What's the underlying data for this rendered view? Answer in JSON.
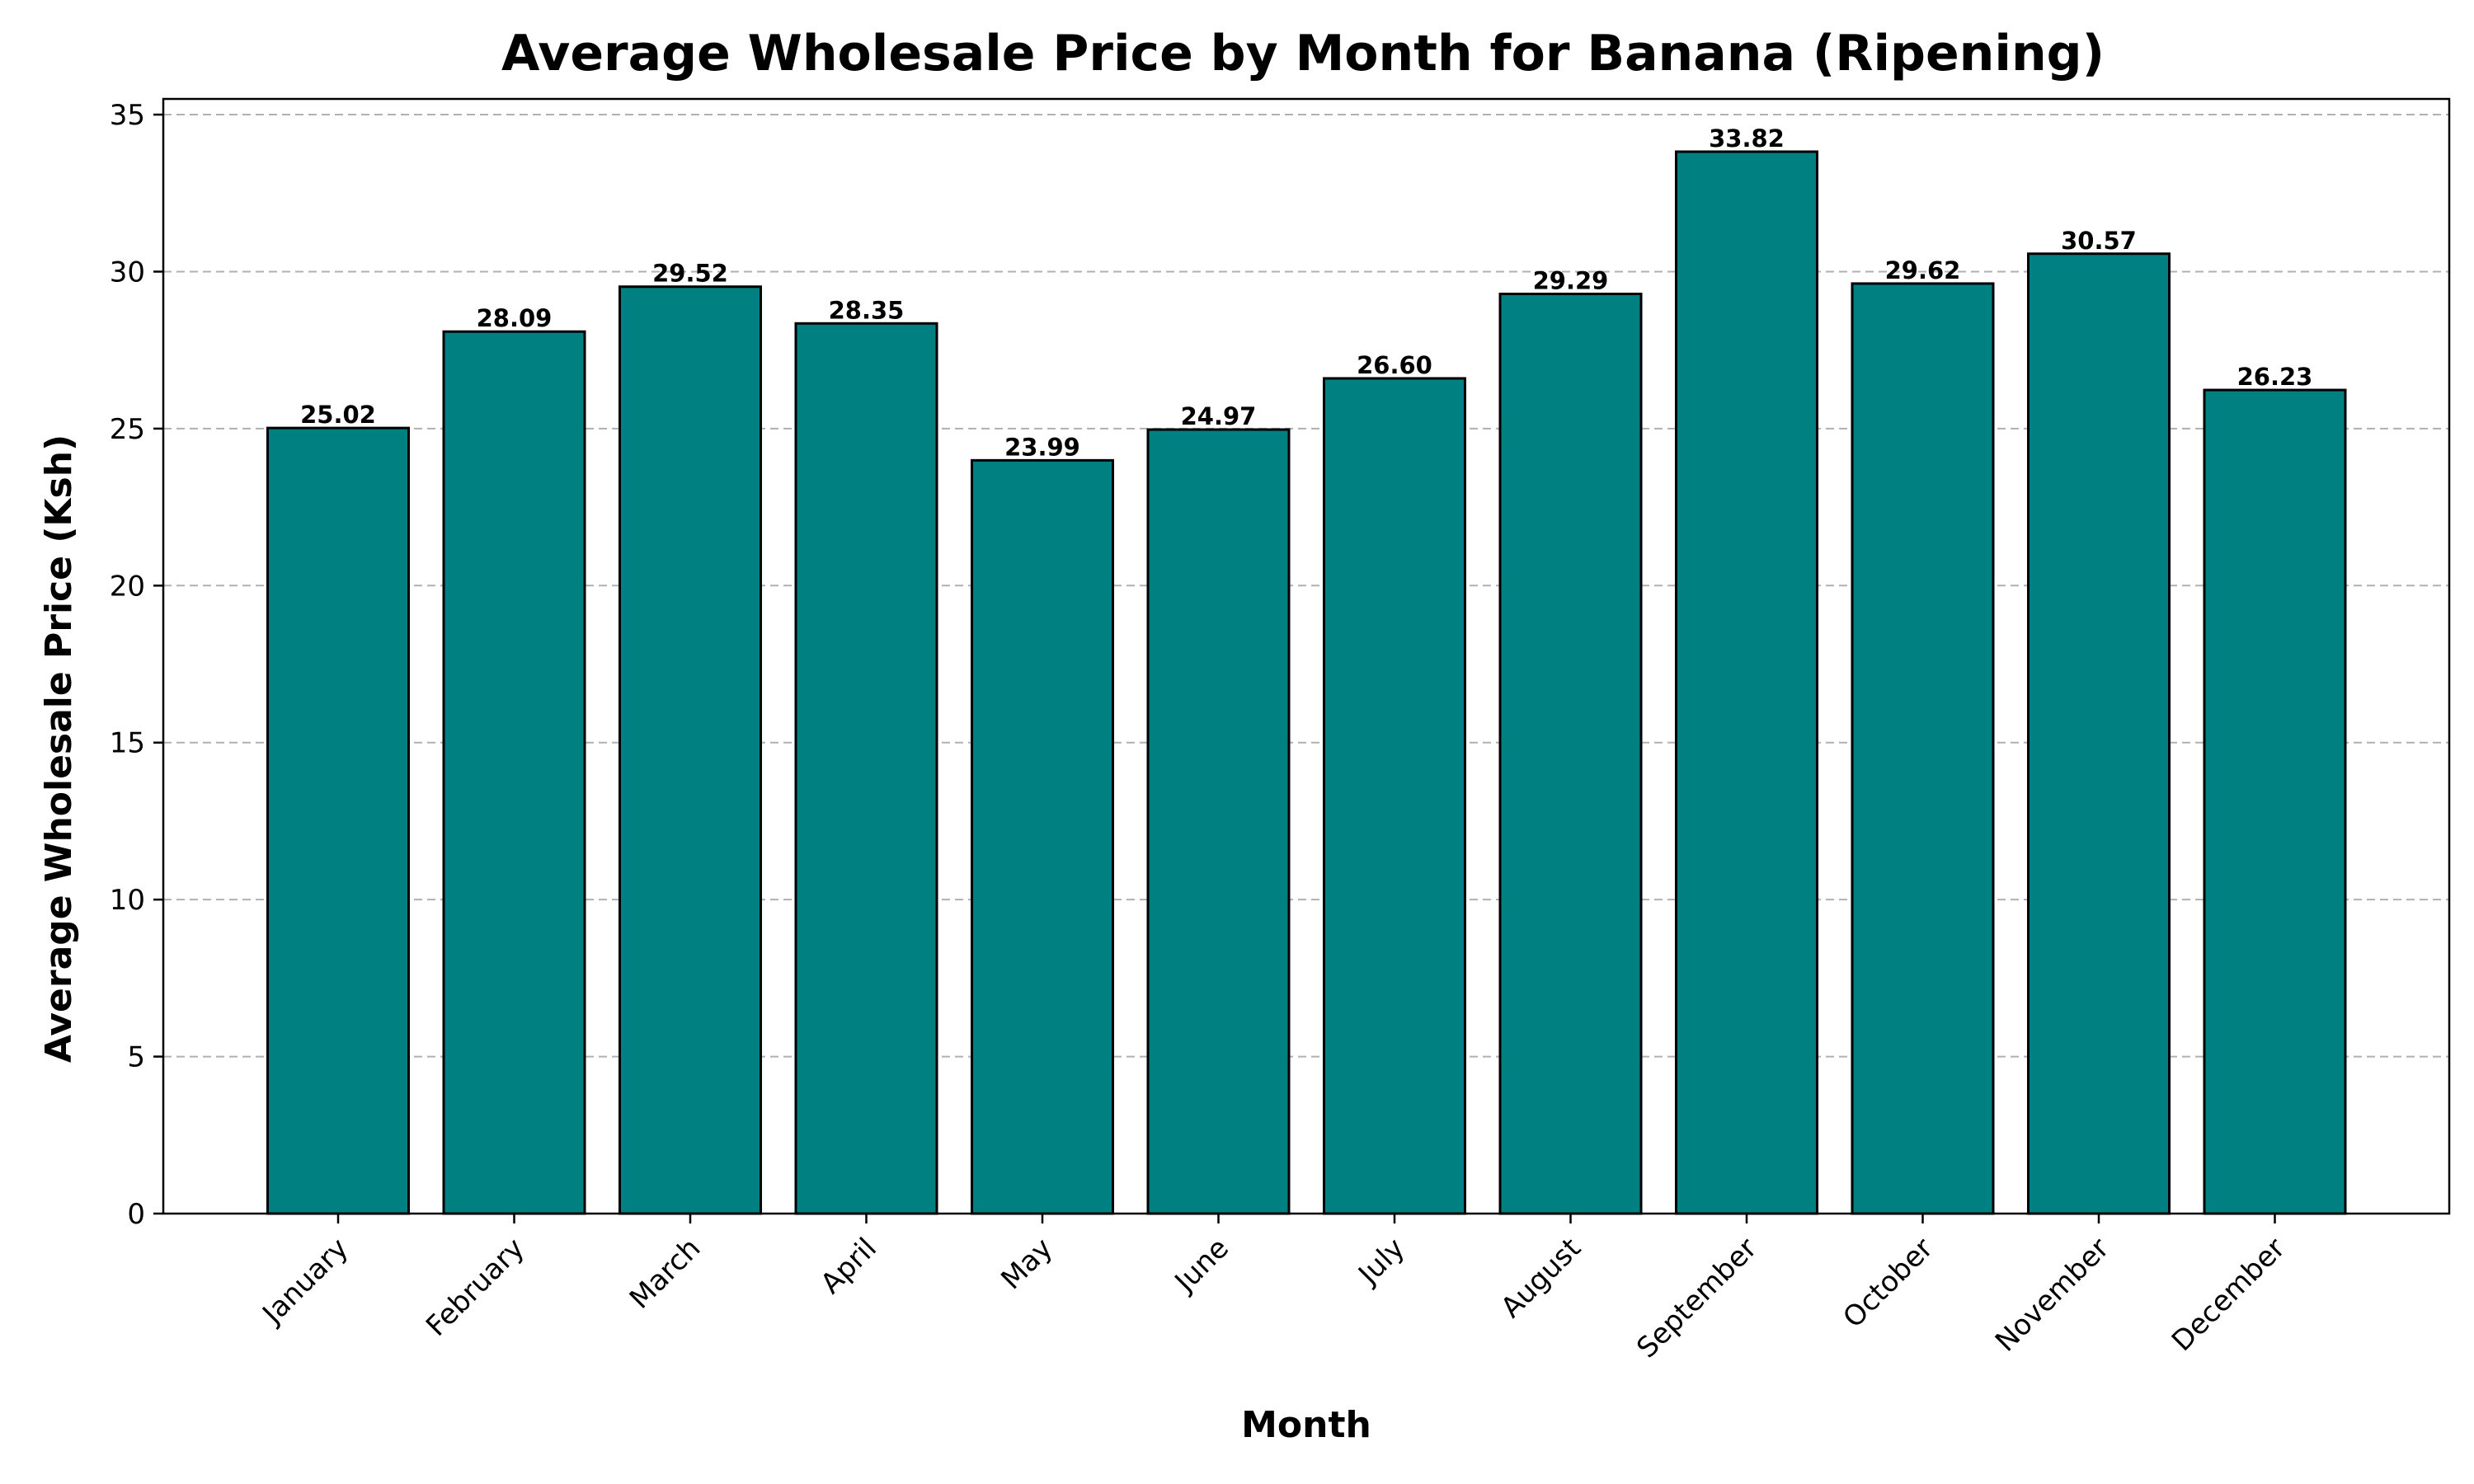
{
  "chart_data": {
    "type": "bar",
    "title": "Average Wholesale Price by Month for Banana (Ripening)",
    "xlabel": "Month",
    "ylabel": "Average Wholesale Price (Ksh)",
    "categories": [
      "January",
      "February",
      "March",
      "April",
      "May",
      "June",
      "July",
      "August",
      "September",
      "October",
      "November",
      "December"
    ],
    "values": [
      25.02,
      28.09,
      29.52,
      28.35,
      23.99,
      24.97,
      26.6,
      29.29,
      33.82,
      29.62,
      30.57,
      26.23
    ],
    "value_labels": [
      "25.02",
      "28.09",
      "29.52",
      "28.35",
      "23.99",
      "24.97",
      "26.60",
      "29.29",
      "33.82",
      "29.62",
      "30.57",
      "26.23"
    ],
    "ylim": [
      0,
      35.5
    ],
    "yticks": [
      0,
      5,
      10,
      15,
      20,
      25,
      30,
      35
    ],
    "grid": "y-dashed",
    "legend": "none",
    "bar_color": "#008080",
    "bar_edge_color": "#000000"
  }
}
